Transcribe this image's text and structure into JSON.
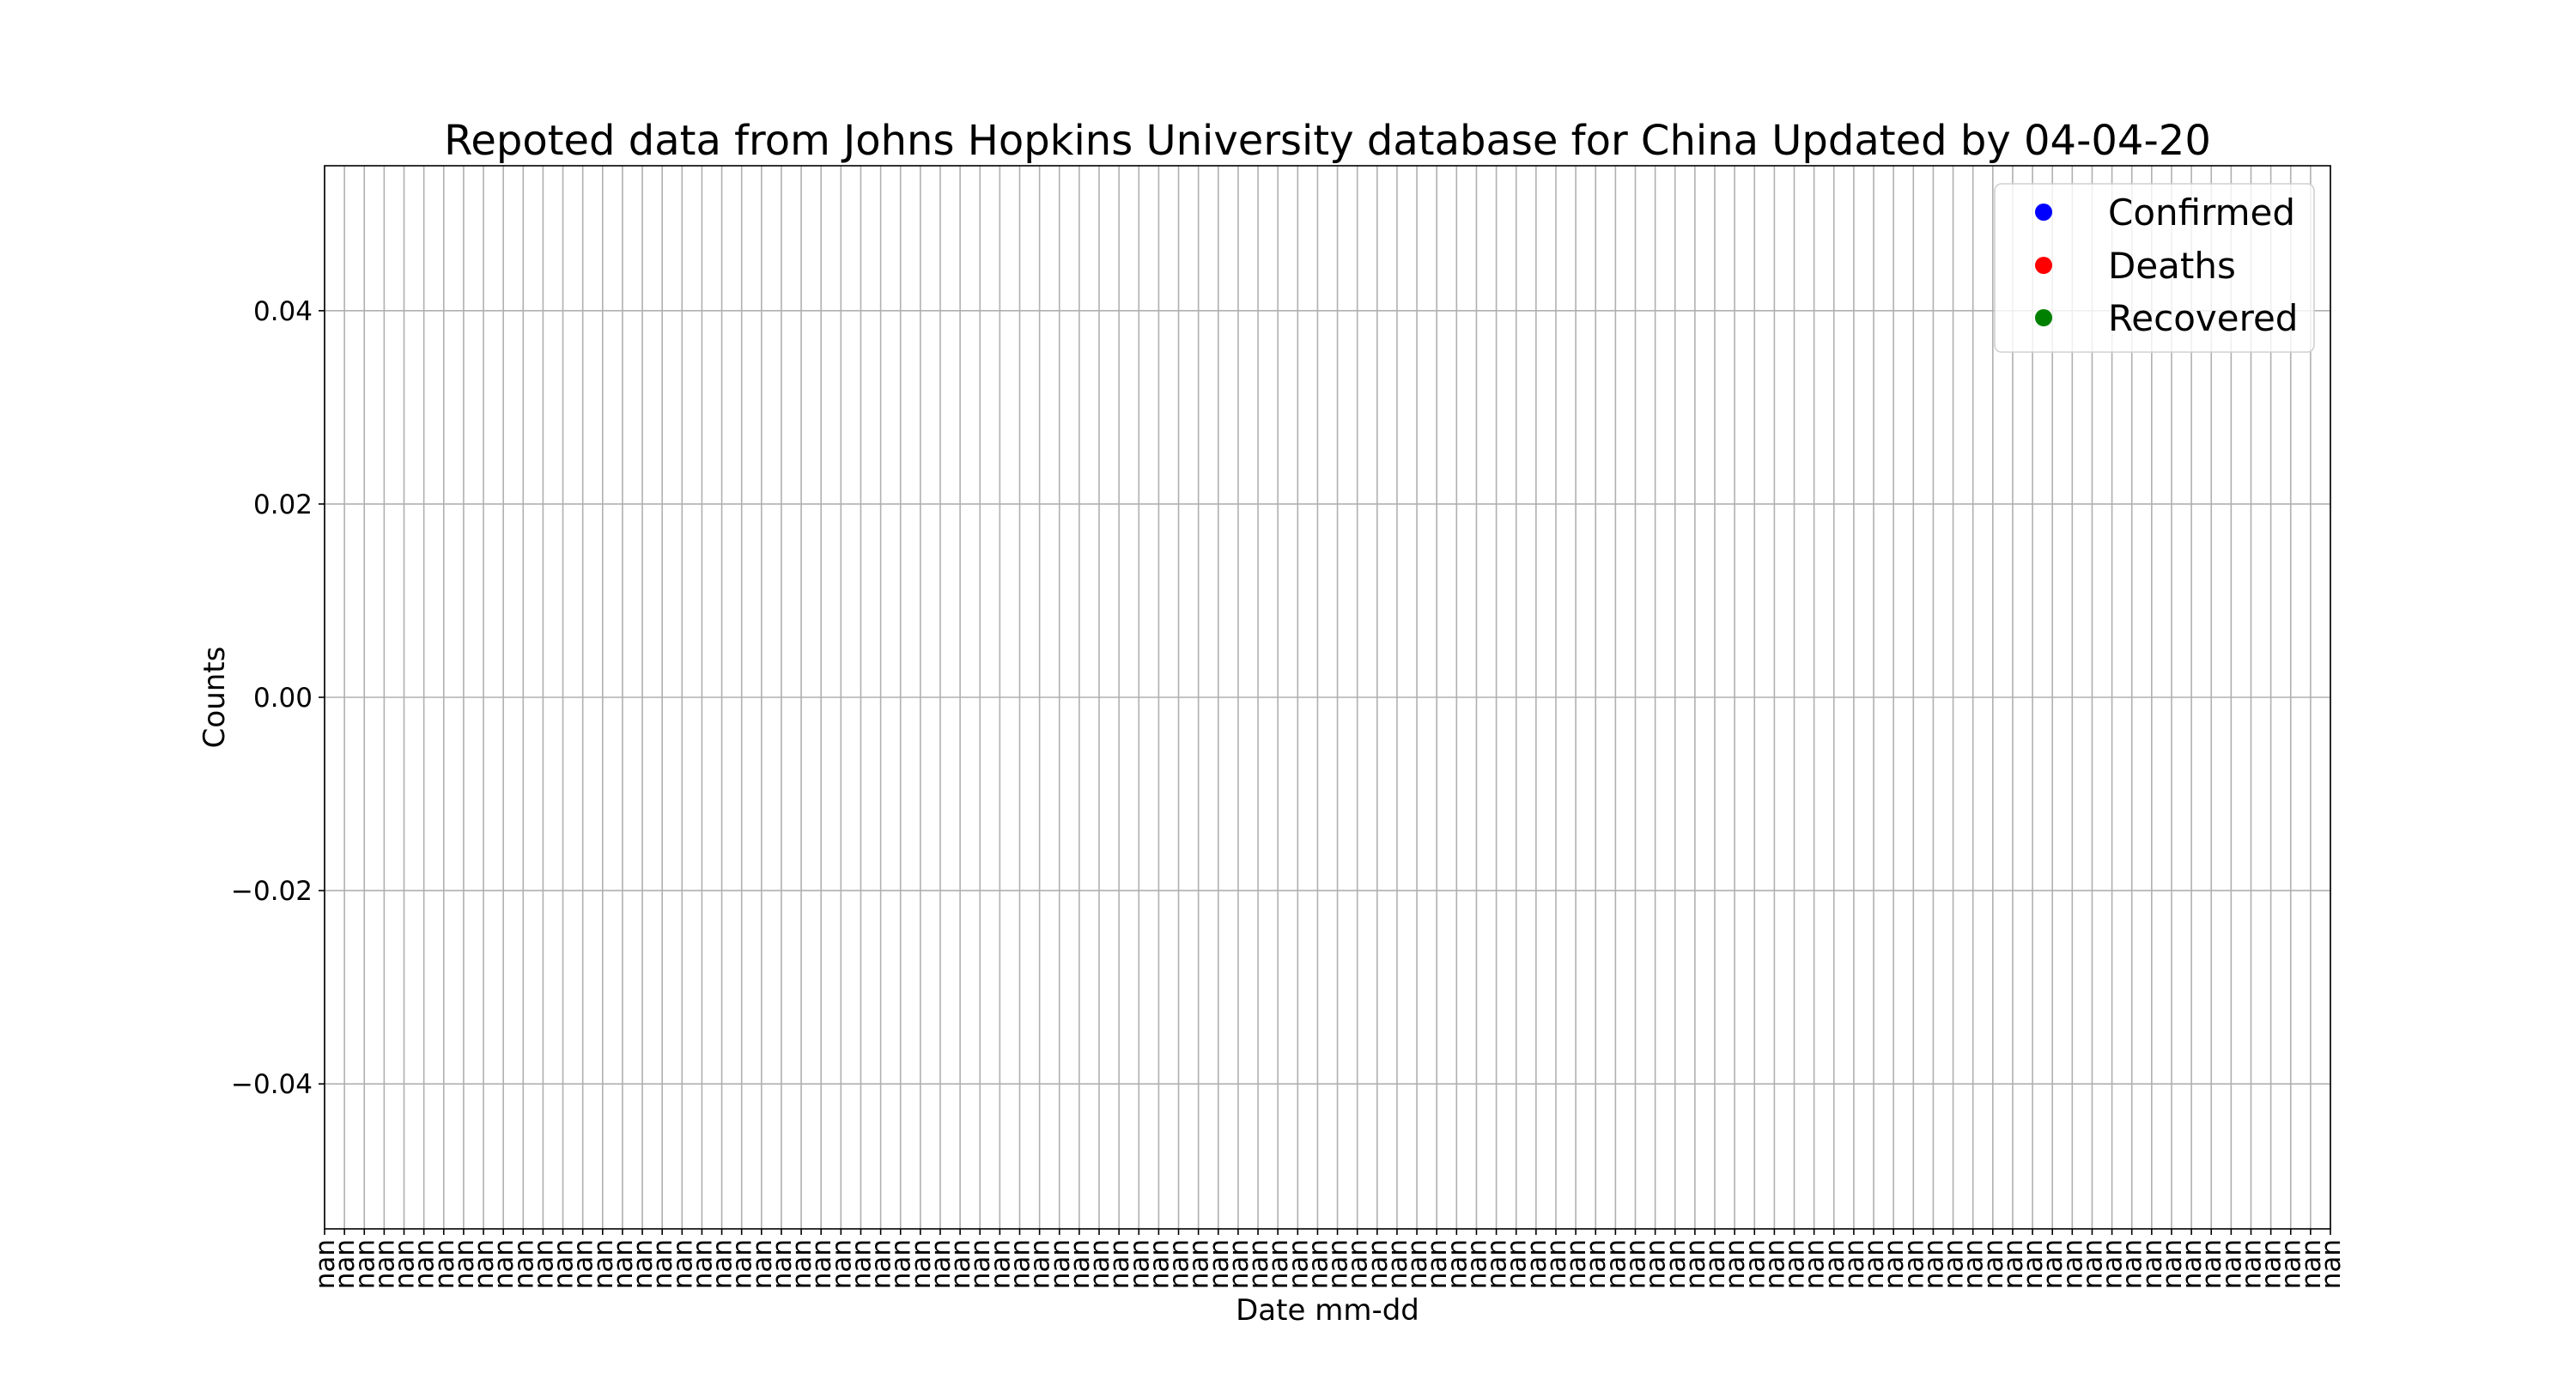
{
  "chart_data": {
    "type": "scatter",
    "title": "Repoted data from Johns Hopkins University database for China Updated by 04-04-20",
    "xlabel": "Date mm-dd",
    "ylabel": "Counts",
    "x_tick_label": "nan",
    "x_tick_count": 102,
    "ylim": [
      -0.055,
      0.055
    ],
    "y_ticks": [
      "0.04",
      "0.02",
      "0.00",
      "−0.02",
      "−0.04"
    ],
    "y_tick_values": [
      0.04,
      0.02,
      0.0,
      -0.02,
      -0.04
    ],
    "grid": true,
    "legend_position": "top-right",
    "series": [
      {
        "name": "Confirmed",
        "color": "#0000ff",
        "values": []
      },
      {
        "name": "Deaths",
        "color": "#ff0000",
        "values": []
      },
      {
        "name": "Recovered",
        "color": "#008000",
        "values": []
      }
    ]
  }
}
